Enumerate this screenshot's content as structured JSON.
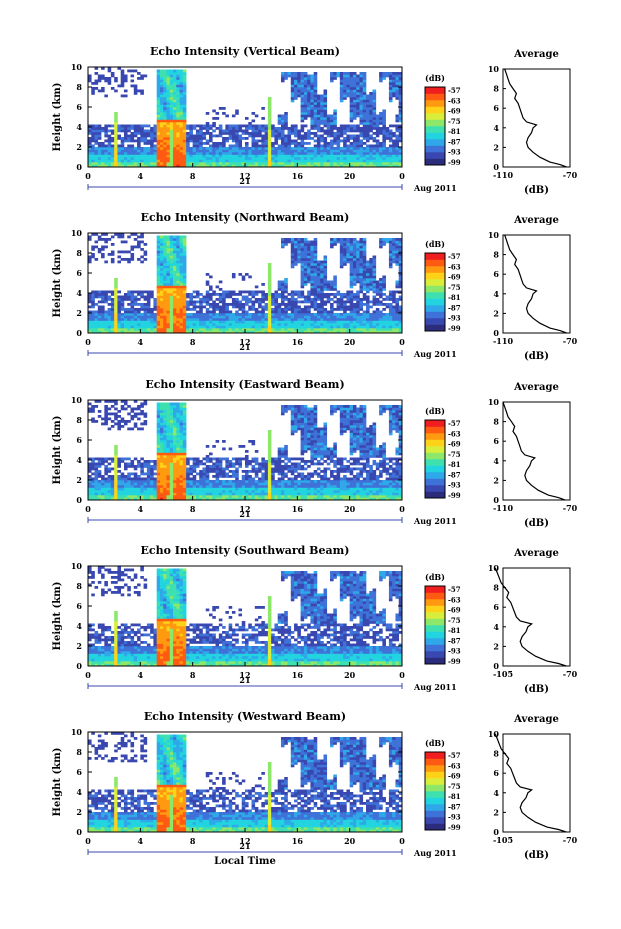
{
  "chart_data": [
    {
      "type": "heatmap",
      "title": "Echo Intensity (Vertical Beam)",
      "ylabel": "Height (km)",
      "x_ticks": [
        "0",
        "4",
        "8",
        "12",
        "16",
        "20",
        "0"
      ],
      "y_ticks": [
        "0",
        "2",
        "4",
        "6",
        "8",
        "10"
      ],
      "xlim": [
        0,
        24
      ],
      "ylim": [
        0,
        10
      ],
      "date_day": "21",
      "date_label": "Aug 2011",
      "colorbar": {
        "unit": "(dB)",
        "ticks": [
          "-57",
          "-63",
          "-69",
          "-75",
          "-81",
          "-87",
          "-93",
          "-99"
        ]
      },
      "profile": {
        "title": "Average",
        "xlabel": "(dB)",
        "x_ticks": [
          "-110",
          "-70"
        ],
        "xlim": [
          -110,
          -70
        ],
        "y_ticks": [
          "0",
          "2",
          "4",
          "6",
          "8",
          "10"
        ]
      }
    },
    {
      "type": "heatmap",
      "title": "Echo Intensity (Northward Beam)",
      "ylabel": "Height (km)",
      "x_ticks": [
        "0",
        "4",
        "8",
        "12",
        "16",
        "20",
        "0"
      ],
      "y_ticks": [
        "0",
        "2",
        "4",
        "6",
        "8",
        "10"
      ],
      "xlim": [
        0,
        24
      ],
      "ylim": [
        0,
        10
      ],
      "date_day": "21",
      "date_label": "Aug 2011",
      "colorbar": {
        "unit": "(dB)",
        "ticks": [
          "-57",
          "-63",
          "-69",
          "-75",
          "-81",
          "-87",
          "-93",
          "-99"
        ]
      },
      "profile": {
        "title": "Average",
        "xlabel": "(dB)",
        "x_ticks": [
          "-110",
          "-70"
        ],
        "xlim": [
          -110,
          -70
        ],
        "y_ticks": [
          "0",
          "2",
          "4",
          "6",
          "8",
          "10"
        ]
      }
    },
    {
      "type": "heatmap",
      "title": "Echo Intensity (Eastward Beam)",
      "ylabel": "Height (km)",
      "x_ticks": [
        "0",
        "4",
        "8",
        "12",
        "16",
        "20",
        "0"
      ],
      "y_ticks": [
        "0",
        "2",
        "4",
        "6",
        "8",
        "10"
      ],
      "xlim": [
        0,
        24
      ],
      "ylim": [
        0,
        10
      ],
      "date_day": "21",
      "date_label": "Aug 2011",
      "colorbar": {
        "unit": "(dB)",
        "ticks": [
          "-57",
          "-63",
          "-69",
          "-75",
          "-81",
          "-87",
          "-93",
          "-99"
        ]
      },
      "profile": {
        "title": "Average",
        "xlabel": "(dB)",
        "x_ticks": [
          "-110",
          "-70"
        ],
        "xlim": [
          -110,
          -70
        ],
        "y_ticks": [
          "0",
          "2",
          "4",
          "6",
          "8",
          "10"
        ]
      }
    },
    {
      "type": "heatmap",
      "title": "Echo Intensity (Southward Beam)",
      "ylabel": "Height (km)",
      "x_ticks": [
        "0",
        "4",
        "8",
        "12",
        "16",
        "20",
        "0"
      ],
      "y_ticks": [
        "0",
        "2",
        "4",
        "6",
        "8",
        "10"
      ],
      "xlim": [
        0,
        24
      ],
      "ylim": [
        0,
        10
      ],
      "date_day": "21",
      "date_label": "Aug 2011",
      "colorbar": {
        "unit": "(dB)",
        "ticks": [
          "-57",
          "-63",
          "-69",
          "-75",
          "-81",
          "-87",
          "-93",
          "-99"
        ]
      },
      "profile": {
        "title": "Average",
        "xlabel": "(dB)",
        "x_ticks": [
          "-105",
          "-70"
        ],
        "xlim": [
          -105,
          -70
        ],
        "y_ticks": [
          "0",
          "2",
          "4",
          "6",
          "8",
          "10"
        ]
      }
    },
    {
      "type": "heatmap",
      "title": "Echo Intensity (Westward Beam)",
      "ylabel": "Height (km)",
      "x_ticks": [
        "0",
        "4",
        "8",
        "12",
        "16",
        "20",
        "0"
      ],
      "y_ticks": [
        "0",
        "2",
        "4",
        "6",
        "8",
        "10"
      ],
      "xlim": [
        0,
        24
      ],
      "ylim": [
        0,
        10
      ],
      "date_day": "21",
      "date_label": "Aug 2011",
      "colorbar": {
        "unit": "(dB)",
        "ticks": [
          "-57",
          "-63",
          "-69",
          "-75",
          "-81",
          "-87",
          "-93",
          "-99"
        ]
      },
      "profile": {
        "title": "Average",
        "xlabel": "(dB)",
        "x_ticks": [
          "-105",
          "-70"
        ],
        "xlim": [
          -105,
          -70
        ],
        "y_ticks": [
          "0",
          "2",
          "4",
          "6",
          "8",
          "10"
        ]
      },
      "xlabel": "Local Time"
    }
  ],
  "profile_series": {
    "height_km": [
      0,
      0.25,
      0.5,
      1.0,
      1.5,
      2.0,
      2.5,
      3.0,
      3.5,
      4.0,
      4.3,
      4.6,
      5.0,
      5.5,
      6.0,
      6.5,
      7.0,
      7.5,
      8.0,
      8.5,
      9.0,
      9.5,
      10.0
    ],
    "avg_db": [
      -72,
      -76,
      -82,
      -88,
      -92,
      -95,
      -96,
      -95,
      -93,
      -92,
      -90,
      -96,
      -98,
      -99,
      -100,
      -101,
      -103,
      -102,
      -104,
      -106,
      -107,
      -108,
      -109
    ]
  },
  "colors": {
    "colormap": [
      "#2b2c7c",
      "#3848b0",
      "#3f72d8",
      "#2ea8e8",
      "#22d3e0",
      "#3fe0b0",
      "#8de86a",
      "#d8ee3a",
      "#ffd21a",
      "#ff9a10",
      "#ff5a12",
      "#f01e1e"
    ],
    "frame": "#000000"
  }
}
